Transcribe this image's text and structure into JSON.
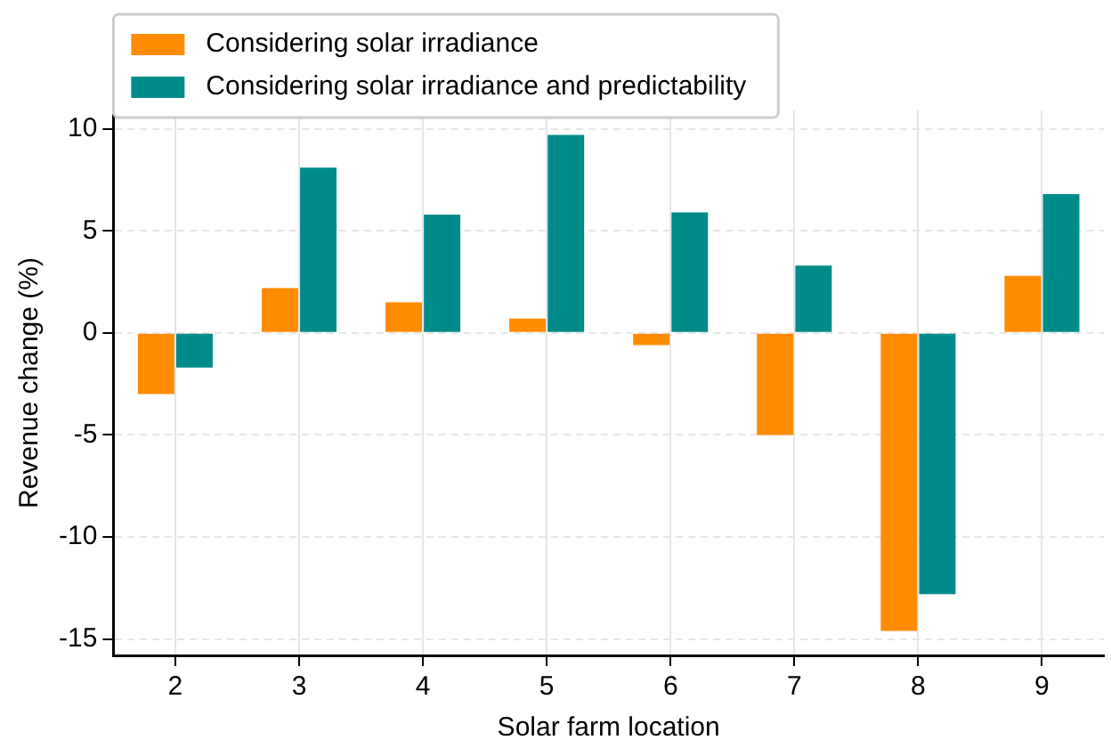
{
  "chart_data": {
    "type": "bar",
    "xlabel": "Solar farm location",
    "ylabel": "Revenue change (%)",
    "categories": [
      "2",
      "3",
      "4",
      "5",
      "6",
      "7",
      "8",
      "9"
    ],
    "series": [
      {
        "name": "Considering solar irradiance",
        "color": "#ff8c00",
        "values": [
          -3.0,
          2.2,
          1.5,
          0.7,
          -0.6,
          -5.0,
          -14.6,
          2.8
        ]
      },
      {
        "name": "Considering solar irradiance and predictability",
        "color": "#008b8b",
        "values": [
          -1.7,
          8.1,
          5.8,
          9.7,
          5.9,
          3.3,
          -12.8,
          6.8
        ]
      }
    ],
    "ylim": [
      -15.8,
      10.9
    ],
    "yticks": [
      -15,
      -10,
      -5,
      0,
      5,
      10
    ],
    "grid": true,
    "legend": "top left"
  }
}
